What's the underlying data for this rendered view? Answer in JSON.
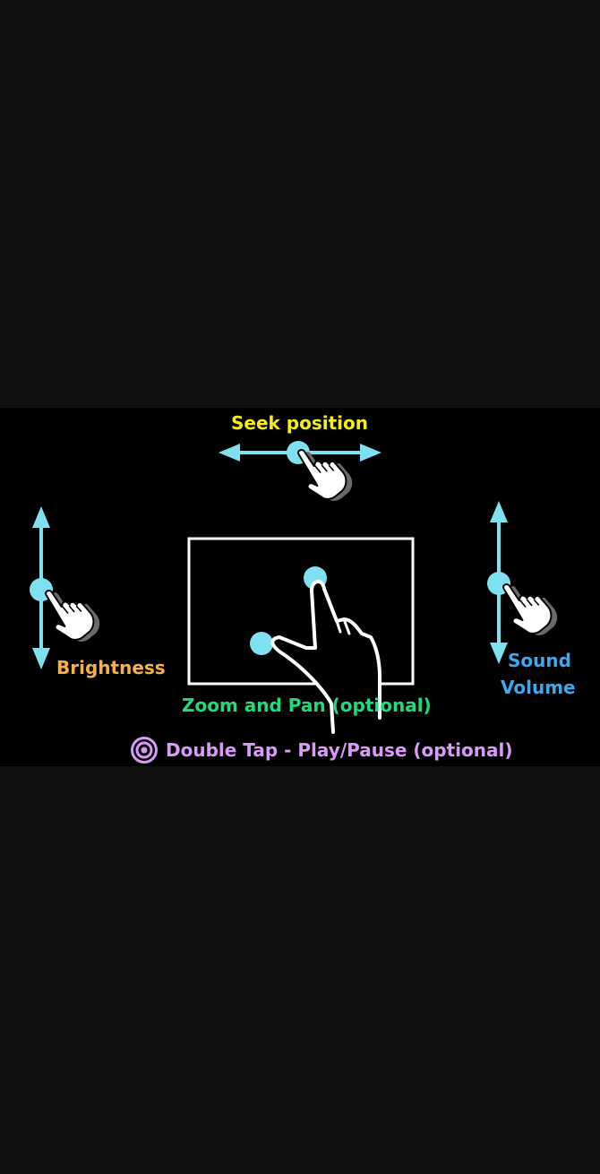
{
  "labels": {
    "seek": "Seek position",
    "brightness": "Brightness",
    "sound": "Sound",
    "volume": "Volume",
    "zoom": "Zoom and Pan (optional)",
    "double_tap": "Double Tap - Play/Pause (optional)"
  },
  "icons": [
    "seek-hand-icon",
    "brightness-hand-icon",
    "volume-hand-icon",
    "pinch-hand-icon",
    "double-tap-icon"
  ],
  "colors": {
    "page_background": "#101010",
    "overlay_background": "#000000",
    "arrow": "#7fe0f0",
    "seek": "#f5ee16",
    "brightness": "#f6b04a",
    "volume": "#3ea7f0",
    "zoom": "#1edc7b",
    "double_tap": "#d79af6"
  }
}
